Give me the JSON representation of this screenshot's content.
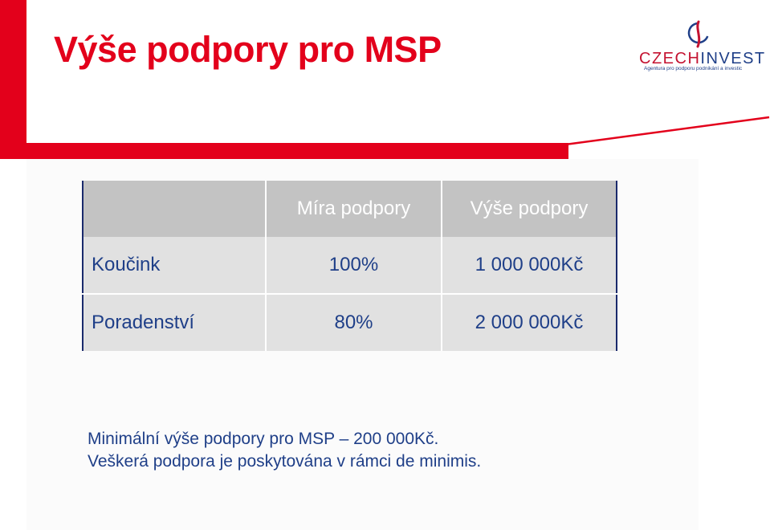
{
  "title": "Výše podpory pro MSP",
  "logo": {
    "name_part1": "CZECH",
    "name_part2": "INVEST",
    "tagline": "Agentura pro podporu podnikání a investic"
  },
  "table": {
    "headers": [
      "",
      "Míra podpory",
      "Výše podpory"
    ],
    "rows": [
      [
        "Koučink",
        "100%",
        "1 000 000Kč"
      ],
      [
        "Poradenství",
        "80%",
        "2 000 000Kč"
      ]
    ]
  },
  "notes": [
    "Minimální výše podpory pro MSP – 200 000Kč.",
    "Veškerá podpora je poskytována v rámci de minimis."
  ],
  "colors": {
    "accent": "#e3001b",
    "text_blue": "#1f3f88"
  }
}
